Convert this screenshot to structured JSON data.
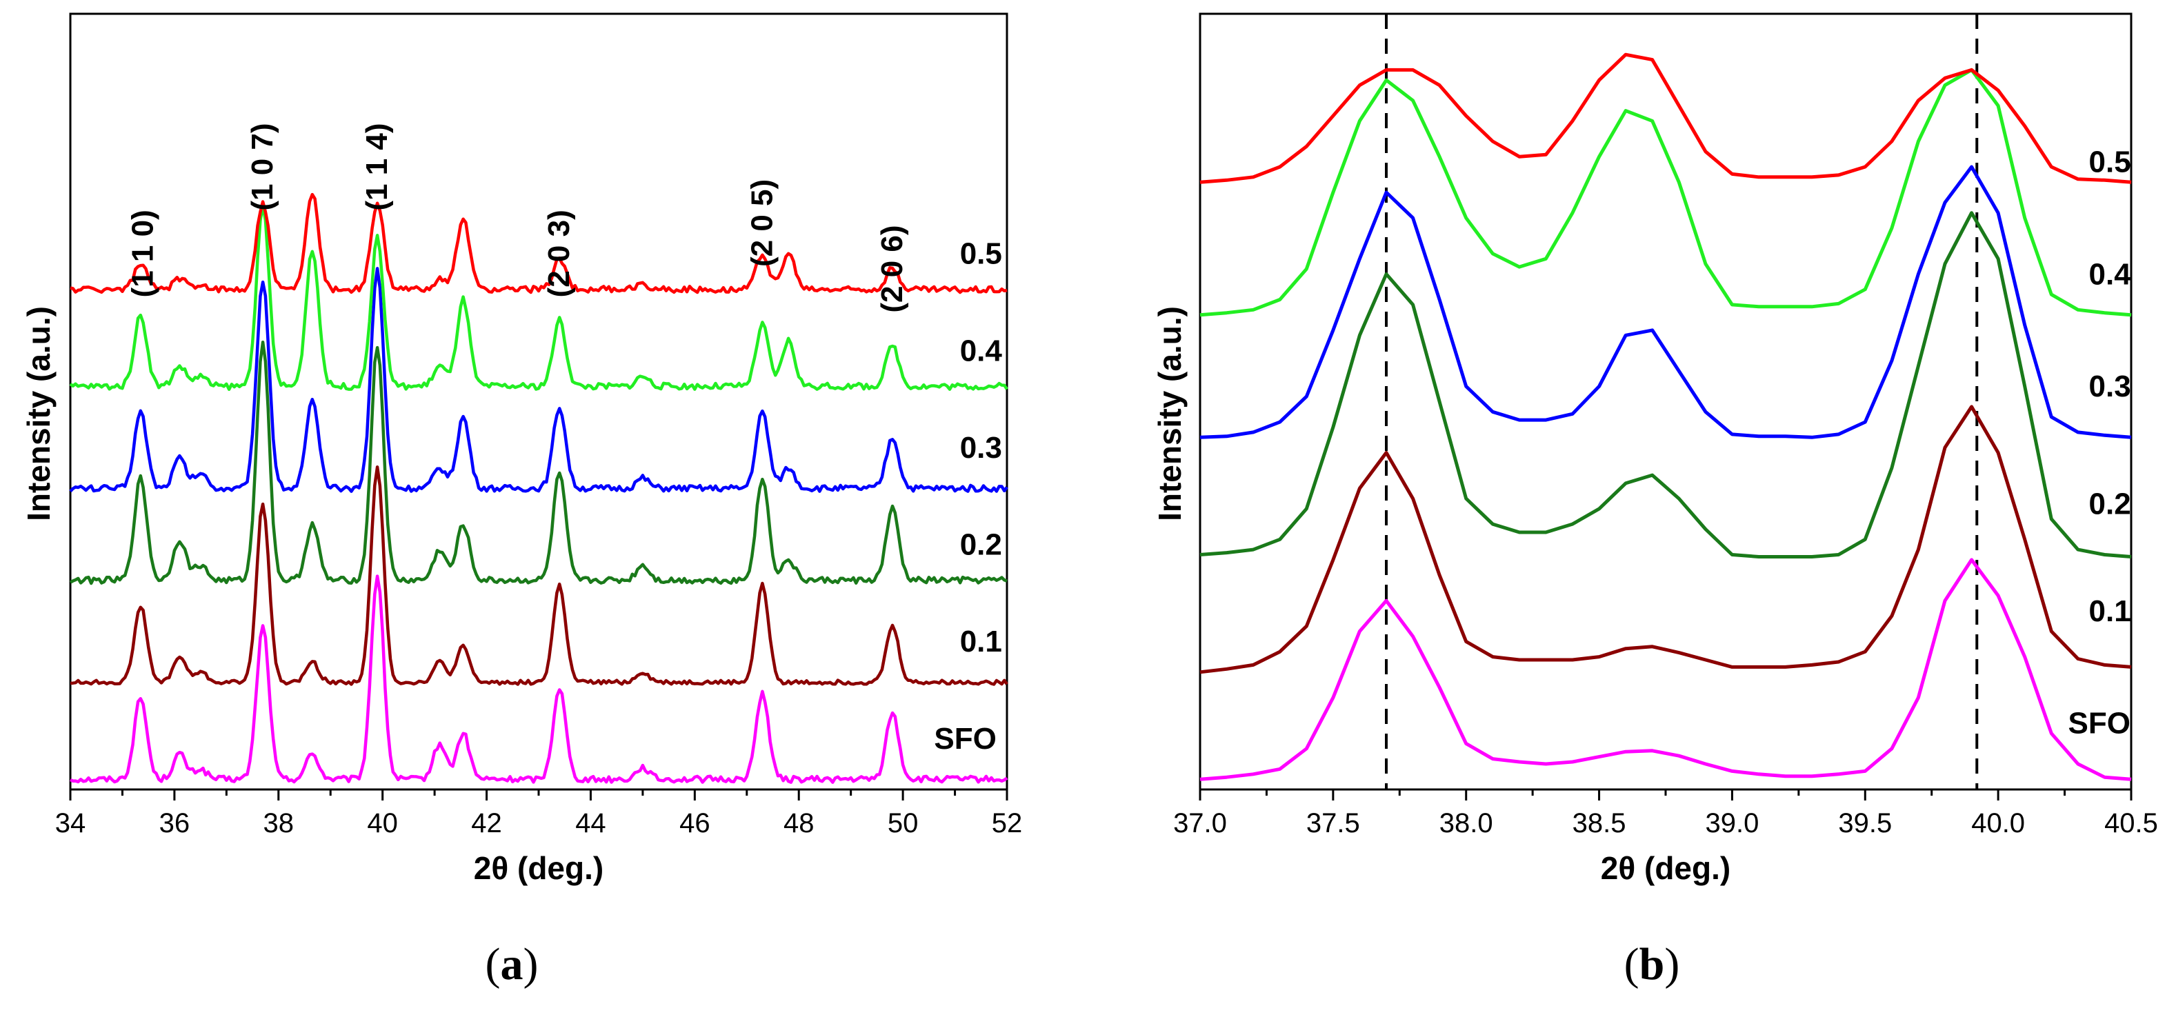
{
  "figure": {
    "caption_a_open": "(",
    "caption_a_letter": "a",
    "caption_a_close": ")",
    "caption_b_open": "(",
    "caption_b_letter": "b",
    "caption_b_close": ")"
  },
  "chart_data": [
    {
      "id": "a",
      "type": "line",
      "title": "",
      "xlabel": "2θ (deg.)",
      "ylabel": "Intensity (a.u.)",
      "xlim": [
        34,
        52
      ],
      "ylim": [
        0,
        7.6
      ],
      "xticks": [
        34,
        36,
        38,
        40,
        42,
        44,
        46,
        48,
        50,
        52
      ],
      "xtick_labels": [
        "34",
        "36",
        "38",
        "40",
        "42",
        "44",
        "46",
        "48",
        "50",
        "52"
      ],
      "yticks_shown": false,
      "hkl_labels": [
        {
          "text": "(1 1 0)",
          "x": 35.4,
          "y": 5.25
        },
        {
          "text": "(1 0 7)",
          "x": 37.7,
          "y": 6.1
        },
        {
          "text": "(1 1 4)",
          "x": 39.9,
          "y": 6.1
        },
        {
          "text": "(2 0 3)",
          "x": 43.4,
          "y": 5.25
        },
        {
          "text": "(2 0 5)",
          "x": 47.3,
          "y": 5.55
        },
        {
          "text": "(2 0 6)",
          "x": 49.8,
          "y": 5.1
        }
      ],
      "peak_centers": [
        35.35,
        36.1,
        36.5,
        37.7,
        38.65,
        39.9,
        41.1,
        41.55,
        43.4,
        45.0,
        47.3,
        47.8,
        49.8
      ],
      "peak_width": 0.12,
      "series": [
        {
          "name": "SFO",
          "color": "#ff00ff",
          "baseline": 0.1,
          "noise": 0.03,
          "heights": [
            0.8,
            0.25,
            0.1,
            1.5,
            0.25,
            2.0,
            0.35,
            0.45,
            0.9,
            0.12,
            0.85,
            0.0,
            0.65
          ]
        },
        {
          "name": "0.1",
          "color": "#8b0000",
          "baseline": 1.05,
          "noise": 0.02,
          "heights": [
            0.75,
            0.25,
            0.1,
            1.75,
            0.2,
            2.1,
            0.2,
            0.35,
            0.95,
            0.1,
            0.95,
            0.0,
            0.55
          ]
        },
        {
          "name": "0.2",
          "color": "#1a7a1a",
          "baseline": 2.05,
          "noise": 0.03,
          "heights": [
            1.0,
            0.4,
            0.15,
            2.35,
            0.55,
            2.3,
            0.3,
            0.55,
            1.05,
            0.15,
            1.0,
            0.2,
            0.7
          ]
        },
        {
          "name": "0.3",
          "color": "#0000ff",
          "baseline": 2.95,
          "noise": 0.03,
          "heights": [
            0.75,
            0.3,
            0.15,
            2.05,
            0.85,
            2.15,
            0.2,
            0.7,
            0.8,
            0.1,
            0.75,
            0.2,
            0.5
          ]
        },
        {
          "name": "0.4",
          "color": "#22ee22",
          "baseline": 3.95,
          "noise": 0.03,
          "heights": [
            0.7,
            0.2,
            0.1,
            1.75,
            1.35,
            1.45,
            0.2,
            0.85,
            0.65,
            0.1,
            0.6,
            0.45,
            0.4
          ]
        },
        {
          "name": "0.5",
          "color": "#ff0000",
          "baseline": 4.9,
          "noise": 0.03,
          "heights": [
            0.25,
            0.1,
            0.05,
            0.85,
            0.95,
            0.85,
            0.1,
            0.7,
            0.3,
            0.05,
            0.35,
            0.35,
            0.2
          ]
        }
      ],
      "series_label_positions": [
        {
          "name": "SFO",
          "x": 51.2,
          "y": 0.4
        },
        {
          "name": "0.1",
          "x": 51.5,
          "y": 1.35
        },
        {
          "name": "0.2",
          "x": 51.5,
          "y": 2.3
        },
        {
          "name": "0.3",
          "x": 51.5,
          "y": 3.25
        },
        {
          "name": "0.4",
          "x": 51.5,
          "y": 4.2
        },
        {
          "name": "0.5",
          "x": 51.5,
          "y": 5.15
        }
      ]
    },
    {
      "id": "b",
      "type": "line",
      "title": "",
      "xlabel": "2θ (deg.)",
      "ylabel": "Intensity (a.u.)",
      "xlim": [
        37.0,
        40.5
      ],
      "ylim": [
        0,
        7.6
      ],
      "xticks": [
        37.0,
        37.5,
        38.0,
        38.5,
        39.0,
        39.5,
        40.0,
        40.5
      ],
      "xtick_labels": [
        "37.0",
        "37.5",
        "38.0",
        "38.5",
        "39.0",
        "39.5",
        "40.0",
        "40.5"
      ],
      "yticks_shown": false,
      "reference_lines": [
        37.7,
        39.92
      ],
      "x": [
        37.0,
        37.1,
        37.2,
        37.3,
        37.4,
        37.5,
        37.6,
        37.7,
        37.8,
        37.9,
        38.0,
        38.1,
        38.2,
        38.3,
        38.4,
        38.5,
        38.6,
        38.7,
        38.8,
        38.9,
        39.0,
        39.1,
        39.2,
        39.3,
        39.4,
        39.5,
        39.6,
        39.7,
        39.8,
        39.9,
        40.0,
        40.1,
        40.2,
        40.3,
        40.4,
        40.5
      ],
      "series": [
        {
          "name": "SFO",
          "color": "#ff00ff",
          "values": [
            0.1,
            0.12,
            0.15,
            0.2,
            0.4,
            0.9,
            1.55,
            1.85,
            1.5,
            1.0,
            0.45,
            0.3,
            0.27,
            0.25,
            0.27,
            0.32,
            0.37,
            0.38,
            0.33,
            0.25,
            0.18,
            0.15,
            0.13,
            0.13,
            0.15,
            0.18,
            0.4,
            0.9,
            1.85,
            2.25,
            1.9,
            1.3,
            0.55,
            0.25,
            0.12,
            0.1
          ]
        },
        {
          "name": "0.1",
          "color": "#8b0000",
          "values": [
            1.15,
            1.18,
            1.22,
            1.35,
            1.6,
            2.25,
            2.95,
            3.3,
            2.85,
            2.1,
            1.45,
            1.3,
            1.27,
            1.27,
            1.27,
            1.3,
            1.38,
            1.4,
            1.34,
            1.27,
            1.2,
            1.2,
            1.2,
            1.22,
            1.25,
            1.35,
            1.7,
            2.35,
            3.35,
            3.75,
            3.3,
            2.45,
            1.55,
            1.28,
            1.22,
            1.2
          ]
        },
        {
          "name": "0.2",
          "color": "#1a7a1a",
          "values": [
            2.3,
            2.32,
            2.35,
            2.45,
            2.75,
            3.55,
            4.45,
            5.05,
            4.75,
            3.8,
            2.85,
            2.6,
            2.52,
            2.52,
            2.6,
            2.75,
            3.0,
            3.08,
            2.85,
            2.55,
            2.3,
            2.28,
            2.28,
            2.28,
            2.3,
            2.45,
            3.15,
            4.15,
            5.15,
            5.65,
            5.2,
            3.95,
            2.65,
            2.35,
            2.3,
            2.28
          ]
        },
        {
          "name": "0.3",
          "color": "#0000ff",
          "values": [
            3.45,
            3.46,
            3.5,
            3.6,
            3.85,
            4.5,
            5.2,
            5.85,
            5.6,
            4.8,
            3.95,
            3.7,
            3.62,
            3.62,
            3.68,
            3.95,
            4.45,
            4.5,
            4.1,
            3.7,
            3.48,
            3.46,
            3.46,
            3.45,
            3.48,
            3.6,
            4.2,
            5.05,
            5.75,
            6.1,
            5.65,
            4.55,
            3.65,
            3.5,
            3.47,
            3.45
          ]
        },
        {
          "name": "0.4",
          "color": "#22ee22",
          "values": [
            4.65,
            4.67,
            4.7,
            4.8,
            5.1,
            5.85,
            6.55,
            6.95,
            6.75,
            6.2,
            5.6,
            5.25,
            5.12,
            5.2,
            5.65,
            6.2,
            6.65,
            6.55,
            5.95,
            5.15,
            4.75,
            4.73,
            4.73,
            4.73,
            4.76,
            4.9,
            5.5,
            6.35,
            6.9,
            7.05,
            6.7,
            5.6,
            4.85,
            4.7,
            4.67,
            4.65
          ]
        },
        {
          "name": "0.5",
          "color": "#ff0000",
          "values": [
            5.95,
            5.97,
            6.0,
            6.1,
            6.3,
            6.6,
            6.9,
            7.05,
            7.05,
            6.9,
            6.6,
            6.35,
            6.2,
            6.22,
            6.55,
            6.95,
            7.2,
            7.15,
            6.7,
            6.25,
            6.03,
            6.0,
            6.0,
            6.0,
            6.02,
            6.1,
            6.35,
            6.75,
            6.97,
            7.05,
            6.85,
            6.5,
            6.1,
            5.98,
            5.97,
            5.95
          ]
        }
      ],
      "series_label_positions": [
        {
          "name": "SFO",
          "x": 40.38,
          "y": 0.55
        },
        {
          "name": "0.1",
          "x": 40.42,
          "y": 1.65
        },
        {
          "name": "0.2",
          "x": 40.42,
          "y": 2.7
        },
        {
          "name": "0.3",
          "x": 40.42,
          "y": 3.85
        },
        {
          "name": "0.4",
          "x": 40.42,
          "y": 4.95
        },
        {
          "name": "0.5",
          "x": 40.42,
          "y": 6.05
        }
      ]
    }
  ]
}
